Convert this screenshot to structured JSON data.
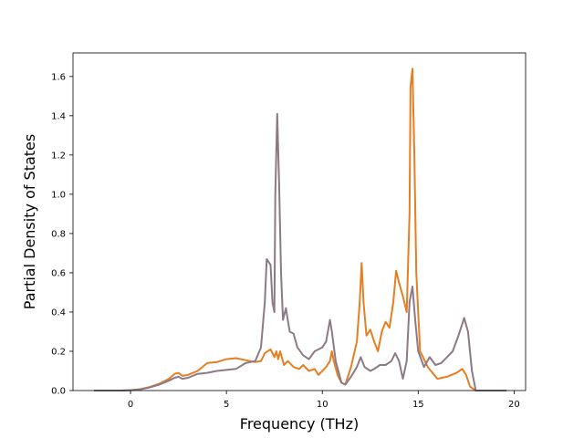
{
  "chart_data": {
    "type": "line",
    "title": "",
    "xlabel": "Frequency (THz)",
    "ylabel": "Partial Density of States",
    "xlim": [
      -3.0,
      20.6
    ],
    "ylim": [
      0.0,
      1.72
    ],
    "xticks": [
      0,
      5,
      10,
      15,
      20
    ],
    "xtick_labels": [
      "0",
      "5",
      "10",
      "15",
      "20"
    ],
    "yticks": [
      0.0,
      0.2,
      0.4,
      0.6,
      0.8,
      1.0,
      1.2,
      1.4,
      1.6
    ],
    "ytick_labels": [
      "0.0",
      "0.2",
      "0.4",
      "0.6",
      "0.8",
      "1.0",
      "1.2",
      "1.4",
      "1.6"
    ],
    "grid": false,
    "legend": false,
    "series": [
      {
        "color": "#e67e22",
        "points": [
          [
            -1.9,
            0.0
          ],
          [
            -0.5,
            0.0
          ],
          [
            0.0,
            0.002
          ],
          [
            0.5,
            0.007
          ],
          [
            1.0,
            0.018
          ],
          [
            1.5,
            0.035
          ],
          [
            2.0,
            0.06
          ],
          [
            2.3,
            0.085
          ],
          [
            2.5,
            0.09
          ],
          [
            2.7,
            0.075
          ],
          [
            3.0,
            0.08
          ],
          [
            3.5,
            0.1
          ],
          [
            4.0,
            0.14
          ],
          [
            4.5,
            0.145
          ],
          [
            5.0,
            0.16
          ],
          [
            5.5,
            0.165
          ],
          [
            6.0,
            0.155
          ],
          [
            6.5,
            0.145
          ],
          [
            6.8,
            0.15
          ],
          [
            7.0,
            0.19
          ],
          [
            7.3,
            0.21
          ],
          [
            7.5,
            0.17
          ],
          [
            7.6,
            0.2
          ],
          [
            7.7,
            0.16
          ],
          [
            7.8,
            0.2
          ],
          [
            8.0,
            0.13
          ],
          [
            8.2,
            0.15
          ],
          [
            8.5,
            0.12
          ],
          [
            8.8,
            0.11
          ],
          [
            9.0,
            0.13
          ],
          [
            9.3,
            0.1
          ],
          [
            9.6,
            0.11
          ],
          [
            9.8,
            0.08
          ],
          [
            10.0,
            0.1
          ],
          [
            10.2,
            0.12
          ],
          [
            10.4,
            0.15
          ],
          [
            10.5,
            0.2
          ],
          [
            10.6,
            0.15
          ],
          [
            10.8,
            0.08
          ],
          [
            11.0,
            0.04
          ],
          [
            11.2,
            0.03
          ],
          [
            11.5,
            0.12
          ],
          [
            11.8,
            0.25
          ],
          [
            11.95,
            0.45
          ],
          [
            12.05,
            0.65
          ],
          [
            12.15,
            0.45
          ],
          [
            12.3,
            0.28
          ],
          [
            12.5,
            0.31
          ],
          [
            12.7,
            0.25
          ],
          [
            12.9,
            0.2
          ],
          [
            13.1,
            0.3
          ],
          [
            13.3,
            0.35
          ],
          [
            13.5,
            0.32
          ],
          [
            13.7,
            0.45
          ],
          [
            13.85,
            0.61
          ],
          [
            14.0,
            0.55
          ],
          [
            14.2,
            0.48
          ],
          [
            14.4,
            0.4
          ],
          [
            14.55,
            0.9
          ],
          [
            14.6,
            1.55
          ],
          [
            14.7,
            1.64
          ],
          [
            14.8,
            1.2
          ],
          [
            14.9,
            0.6
          ],
          [
            15.1,
            0.2
          ],
          [
            15.5,
            0.12
          ],
          [
            16.0,
            0.06
          ],
          [
            16.5,
            0.07
          ],
          [
            17.0,
            0.09
          ],
          [
            17.3,
            0.11
          ],
          [
            17.5,
            0.08
          ],
          [
            17.7,
            0.02
          ],
          [
            18.0,
            0.0
          ],
          [
            19.6,
            0.0
          ]
        ]
      },
      {
        "color": "#8c7a85",
        "points": [
          [
            -1.9,
            0.0
          ],
          [
            -0.5,
            0.0
          ],
          [
            0.0,
            0.002
          ],
          [
            0.5,
            0.006
          ],
          [
            1.0,
            0.016
          ],
          [
            1.5,
            0.03
          ],
          [
            2.0,
            0.05
          ],
          [
            2.3,
            0.065
          ],
          [
            2.5,
            0.07
          ],
          [
            2.7,
            0.06
          ],
          [
            3.0,
            0.065
          ],
          [
            3.5,
            0.085
          ],
          [
            4.0,
            0.09
          ],
          [
            4.5,
            0.1
          ],
          [
            5.0,
            0.105
          ],
          [
            5.5,
            0.11
          ],
          [
            6.0,
            0.14
          ],
          [
            6.5,
            0.15
          ],
          [
            6.8,
            0.22
          ],
          [
            7.0,
            0.45
          ],
          [
            7.1,
            0.67
          ],
          [
            7.3,
            0.64
          ],
          [
            7.4,
            0.45
          ],
          [
            7.5,
            0.4
          ],
          [
            7.55,
            1.0
          ],
          [
            7.65,
            1.41
          ],
          [
            7.75,
            1.05
          ],
          [
            7.85,
            0.6
          ],
          [
            7.95,
            0.36
          ],
          [
            8.1,
            0.42
          ],
          [
            8.3,
            0.3
          ],
          [
            8.5,
            0.29
          ],
          [
            8.7,
            0.22
          ],
          [
            9.0,
            0.18
          ],
          [
            9.3,
            0.16
          ],
          [
            9.6,
            0.2
          ],
          [
            10.0,
            0.22
          ],
          [
            10.2,
            0.25
          ],
          [
            10.4,
            0.36
          ],
          [
            10.5,
            0.3
          ],
          [
            10.7,
            0.15
          ],
          [
            11.0,
            0.04
          ],
          [
            11.2,
            0.03
          ],
          [
            11.5,
            0.07
          ],
          [
            11.8,
            0.12
          ],
          [
            12.0,
            0.17
          ],
          [
            12.2,
            0.12
          ],
          [
            12.5,
            0.1
          ],
          [
            12.7,
            0.11
          ],
          [
            13.0,
            0.13
          ],
          [
            13.3,
            0.13
          ],
          [
            13.6,
            0.15
          ],
          [
            13.8,
            0.19
          ],
          [
            14.0,
            0.15
          ],
          [
            14.2,
            0.06
          ],
          [
            14.4,
            0.15
          ],
          [
            14.55,
            0.45
          ],
          [
            14.7,
            0.53
          ],
          [
            14.85,
            0.35
          ],
          [
            15.0,
            0.2
          ],
          [
            15.3,
            0.12
          ],
          [
            15.6,
            0.17
          ],
          [
            15.9,
            0.13
          ],
          [
            16.2,
            0.14
          ],
          [
            16.5,
            0.17
          ],
          [
            16.8,
            0.2
          ],
          [
            17.1,
            0.28
          ],
          [
            17.4,
            0.37
          ],
          [
            17.6,
            0.3
          ],
          [
            17.8,
            0.1
          ],
          [
            18.0,
            0.0
          ],
          [
            19.6,
            0.0
          ]
        ]
      }
    ]
  }
}
